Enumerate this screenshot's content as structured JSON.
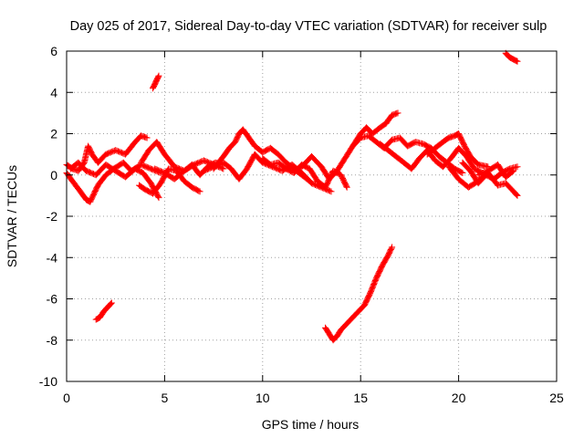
{
  "chart_data": {
    "type": "scatter",
    "title": "Day 025 of 2017, Sidereal Day-to-day VTEC variation (SDTVAR) for receiver sulp",
    "xlabel": "GPS time / hours",
    "ylabel": "SDTVAR / TECUs",
    "xlim": [
      0,
      25
    ],
    "ylim": [
      -10,
      6
    ],
    "xticks": [
      0,
      5,
      10,
      15,
      20,
      25
    ],
    "yticks": [
      -10,
      -8,
      -6,
      -4,
      -2,
      0,
      2,
      4,
      6
    ],
    "grid": true,
    "marker": "+",
    "series": [
      {
        "name": "SDTVAR",
        "color": "#ff0000",
        "tracks": [
          {
            "x": [
              0.0,
              0.3,
              0.6,
              0.9,
              1.1,
              1.3,
              1.6,
              2.0,
              2.5,
              3.0,
              3.5,
              3.8,
              4.1
            ],
            "y": [
              0.5,
              0.3,
              0.2,
              0.6,
              1.4,
              1.0,
              0.6,
              1.0,
              1.2,
              1.0,
              1.6,
              1.9,
              1.8
            ]
          },
          {
            "x": [
              0.0,
              0.3,
              0.7,
              1.0,
              1.2,
              1.6,
              2.0,
              2.4,
              2.9,
              3.3,
              3.8,
              4.3,
              4.8
            ],
            "y": [
              0.1,
              -0.3,
              -0.8,
              -1.2,
              -1.3,
              -0.5,
              0.0,
              0.3,
              0.6,
              0.2,
              0.5,
              0.3,
              0.1
            ]
          },
          {
            "x": [
              0.2,
              0.6,
              1.0,
              1.5,
              2.0,
              2.5,
              3.0,
              3.5,
              3.9,
              4.3,
              4.7
            ],
            "y": [
              0.3,
              0.6,
              0.2,
              0.0,
              0.5,
              0.2,
              -0.1,
              0.3,
              0.1,
              -0.4,
              -1.1
            ]
          },
          {
            "x": [
              3.8,
              4.2,
              4.6,
              5.0,
              5.5,
              6.0,
              6.5,
              7.0,
              7.5,
              8.0
            ],
            "y": [
              0.6,
              1.2,
              1.6,
              1.0,
              0.4,
              0.2,
              0.5,
              0.7,
              0.5,
              0.3
            ]
          },
          {
            "x": [
              3.7,
              4.0,
              4.4,
              4.8,
              5.2,
              5.6,
              6.0,
              6.4,
              6.8
            ],
            "y": [
              -0.5,
              -0.7,
              -0.9,
              -0.4,
              0.3,
              0.2,
              -0.3,
              -0.6,
              -0.8
            ]
          },
          {
            "x": [
              4.5,
              5.0,
              5.5,
              6.0,
              6.4,
              6.8,
              7.2,
              7.6,
              8.0
            ],
            "y": [
              0.3,
              0.1,
              -0.2,
              0.2,
              0.5,
              0.0,
              0.4,
              0.6,
              0.5
            ]
          },
          {
            "x": [
              7.5,
              8.0,
              8.3,
              8.6,
              8.8,
              9.0,
              9.3,
              9.6,
              10.0,
              10.4,
              10.8,
              11.2,
              11.6,
              12.0,
              12.4
            ],
            "y": [
              0.3,
              0.9,
              1.3,
              1.6,
              2.0,
              2.2,
              1.8,
              1.4,
              1.1,
              1.3,
              1.0,
              0.6,
              0.3,
              0.0,
              -0.3
            ]
          },
          {
            "x": [
              7.0,
              7.5,
              8.0,
              8.4,
              8.8,
              9.2,
              9.6,
              10.0,
              10.5,
              11.0,
              11.5,
              12.0,
              12.5,
              13.0,
              13.5
            ],
            "y": [
              0.2,
              0.4,
              0.6,
              0.3,
              -0.2,
              0.3,
              1.0,
              0.6,
              0.4,
              0.2,
              0.5,
              0.1,
              -0.4,
              -0.6,
              -0.8
            ]
          },
          {
            "x": [
              10.0,
              10.4,
              10.8,
              11.2,
              11.6,
              12.0,
              12.4,
              12.8,
              13.2,
              13.6,
              14.0,
              14.3
            ],
            "y": [
              0.8,
              0.5,
              0.6,
              0.3,
              0.1,
              0.5,
              0.3,
              -0.3,
              -0.6,
              0.2,
              0.0,
              -0.6
            ]
          },
          {
            "x": [
              12.0,
              12.5,
              13.0,
              13.4,
              13.8,
              14.2,
              14.6,
              15.0,
              15.3,
              15.6,
              16.0,
              16.3,
              16.6,
              16.9
            ],
            "y": [
              0.4,
              0.9,
              0.4,
              -0.2,
              0.2,
              0.8,
              1.4,
              2.0,
              2.3,
              2.0,
              2.3,
              2.5,
              2.9,
              3.0
            ]
          },
          {
            "x": [
              14.6,
              15.0,
              15.4,
              15.8,
              16.2,
              16.6,
              17.0,
              17.4,
              17.8,
              18.2,
              18.6,
              19.0,
              19.4,
              19.8,
              20.2
            ],
            "y": [
              1.4,
              1.8,
              1.9,
              1.6,
              1.3,
              1.7,
              1.8,
              1.4,
              1.6,
              1.5,
              1.3,
              0.9,
              0.6,
              0.3,
              0.1
            ]
          },
          {
            "x": [
              16.0,
              16.4,
              16.8,
              17.2,
              17.6,
              18.0,
              18.4,
              18.8,
              19.2,
              19.6,
              20.0,
              20.4,
              20.8,
              21.2
            ],
            "y": [
              1.5,
              1.2,
              0.9,
              0.6,
              0.3,
              0.8,
              1.2,
              0.7,
              0.4,
              0.8,
              1.3,
              0.9,
              0.3,
              0.1
            ]
          },
          {
            "x": [
              18.4,
              18.8,
              19.2,
              19.5,
              19.8,
              20.0,
              20.3,
              20.6,
              21.0,
              21.5
            ],
            "y": [
              1.0,
              1.3,
              1.6,
              1.8,
              1.9,
              2.0,
              1.4,
              0.9,
              0.5,
              0.4
            ]
          },
          {
            "x": [
              19.5,
              20.0,
              20.5,
              21.0,
              21.5,
              22.0,
              22.4,
              22.8,
              23.0
            ],
            "y": [
              0.4,
              -0.2,
              -0.6,
              -0.3,
              0.1,
              -0.5,
              -0.4,
              -0.8,
              -1.0
            ]
          },
          {
            "x": [
              20.2,
              20.6,
              21.0,
              21.4,
              21.8,
              22.2,
              22.6,
              23.0
            ],
            "y": [
              0.6,
              0.2,
              -0.4,
              0.0,
              -0.2,
              0.1,
              0.3,
              0.4
            ]
          },
          {
            "x": [
              21.0,
              21.5,
              22.0,
              22.4,
              22.8
            ],
            "y": [
              0.0,
              0.2,
              0.5,
              -0.1,
              0.2
            ]
          },
          {
            "x": [
              1.5,
              1.7,
              1.9,
              2.1,
              2.3
            ],
            "y": [
              -7.0,
              -6.9,
              -6.6,
              -6.4,
              -6.2
            ]
          },
          {
            "x": [
              4.4,
              4.5,
              4.6,
              4.7
            ],
            "y": [
              4.2,
              4.4,
              4.6,
              4.8
            ]
          },
          {
            "x": [
              13.2,
              13.4,
              13.6,
              13.8,
              14.0,
              14.3,
              14.6,
              14.9,
              15.2,
              15.5,
              15.8,
              16.1,
              16.4,
              16.6
            ],
            "y": [
              -7.4,
              -7.7,
              -8.0,
              -7.8,
              -7.5,
              -7.2,
              -6.9,
              -6.6,
              -6.3,
              -5.7,
              -5.0,
              -4.4,
              -3.9,
              -3.5
            ]
          },
          {
            "x": [
              22.4,
              22.6,
              22.8,
              23.0
            ],
            "y": [
              5.9,
              5.7,
              5.6,
              5.5
            ]
          }
        ]
      }
    ]
  }
}
